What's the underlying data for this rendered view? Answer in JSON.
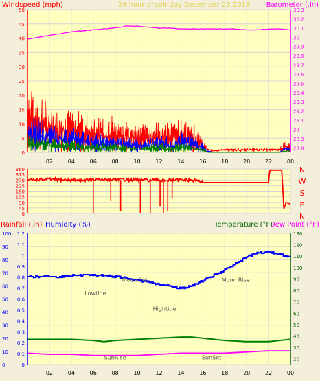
{
  "colors": {
    "background": "#f3efda",
    "plot_bg": "#ffffc0",
    "grid": "#d4d4d4",
    "red": "#ff0000",
    "blue": "#0000ff",
    "green": "#008000",
    "magenta": "#ff00ff",
    "yellow_text": "#e0d040",
    "dark_green": "#006400",
    "gray": "#505050"
  },
  "header": {
    "left": "Windspeed (mph)",
    "center": "24 hour graph day   December 23 2018",
    "right": "Barometer (.in)"
  },
  "compass": [
    "N",
    "W",
    "S",
    "E",
    "N"
  ],
  "chart_data": [
    {
      "type": "line",
      "name": "wind-barometer-panel",
      "x_ticks": [
        "02",
        "04",
        "06",
        "08",
        "10",
        "12",
        "14",
        "16",
        "18",
        "20",
        "22",
        "00"
      ],
      "xlim_hours": [
        0,
        24
      ],
      "y_left": {
        "label": "Windspeed (mph)",
        "lim": [
          0,
          50
        ],
        "ticks": [
          0,
          5,
          10,
          15,
          20,
          25,
          30,
          35,
          40,
          45,
          50
        ]
      },
      "y_right": {
        "label": "Barometer (.in)",
        "lim": [
          28.75,
          30.3
        ],
        "ticks": [
          "28.8",
          "28.9",
          "29",
          "29.1",
          "29.2",
          "29.3",
          "29.4",
          "29.5",
          "29.6",
          "29.7",
          "29.8",
          "29.9",
          "30",
          "30.1",
          "30.2",
          "30.3"
        ]
      },
      "series": [
        {
          "color": "magenta",
          "axis": "right",
          "x": [
            0,
            1,
            2,
            3,
            4,
            5,
            6,
            7,
            8,
            9,
            10,
            11,
            12,
            13,
            14,
            15,
            16,
            17,
            18,
            19,
            20,
            21,
            22,
            23,
            24
          ],
          "y": [
            29.98,
            30.0,
            30.02,
            30.04,
            30.06,
            30.07,
            30.08,
            30.09,
            30.1,
            30.12,
            30.12,
            30.11,
            30.1,
            30.1,
            30.09,
            30.09,
            30.09,
            30.09,
            30.09,
            30.09,
            30.08,
            30.08,
            30.09,
            30.09,
            30.08
          ]
        },
        {
          "color": "red",
          "axis": "left",
          "x": [
            0,
            1,
            2,
            3,
            4,
            5,
            6,
            7,
            8,
            9,
            10,
            11,
            12,
            13,
            14,
            15,
            16,
            16.5,
            17,
            18,
            19,
            20,
            21,
            22,
            23,
            23.5,
            24
          ],
          "y": [
            13,
            11,
            10,
            9,
            9,
            8,
            7,
            7,
            7,
            6,
            6,
            6,
            6,
            6,
            7,
            6,
            3,
            1,
            0.5,
            1,
            1,
            1,
            1,
            1,
            1,
            3,
            2
          ]
        },
        {
          "color": "blue",
          "axis": "left",
          "x": [
            0,
            1,
            2,
            3,
            4,
            5,
            6,
            7,
            8,
            9,
            10,
            11,
            12,
            13,
            14,
            15,
            16,
            16.5,
            17,
            18,
            19,
            20,
            21,
            22,
            23,
            23.5,
            24
          ],
          "y": [
            8,
            6.5,
            6,
            5.5,
            5,
            4.5,
            4,
            3.5,
            3.5,
            3,
            3,
            3,
            3.5,
            3,
            4,
            3.5,
            2,
            0.5,
            0,
            0,
            0,
            0,
            0,
            0,
            0,
            1.5,
            1
          ]
        },
        {
          "color": "green",
          "axis": "left",
          "x": [
            0,
            1,
            2,
            3,
            4,
            5,
            6,
            7,
            8,
            9,
            10,
            11,
            12,
            13,
            14,
            15,
            16,
            16.5,
            17,
            18,
            19,
            20,
            21,
            22,
            23,
            23.5,
            24
          ],
          "y": [
            4,
            3,
            3,
            2.5,
            2.5,
            2,
            2,
            2,
            2,
            1.5,
            1.5,
            1.5,
            2,
            1.5,
            2,
            1.5,
            1,
            0,
            0,
            0,
            0,
            0,
            0,
            0,
            0,
            0.5,
            0.5
          ]
        }
      ]
    },
    {
      "type": "line",
      "name": "wind-direction-panel",
      "x_ticks": [
        "02",
        "04",
        "06",
        "08",
        "10",
        "12",
        "14",
        "16",
        "18",
        "20",
        "22",
        "00"
      ],
      "xlim_hours": [
        0,
        24
      ],
      "y": {
        "lim": [
          0,
          360
        ],
        "ticks": [
          0,
          45,
          90,
          135,
          180,
          225,
          270,
          315,
          360
        ]
      },
      "series": [
        {
          "color": "red",
          "x": [
            0,
            2,
            4,
            6,
            8,
            10,
            12,
            14,
            15.5,
            16,
            16.2,
            22,
            22.1,
            23.2,
            23.4,
            23.6,
            24
          ],
          "y": [
            270,
            275,
            270,
            270,
            275,
            270,
            268,
            270,
            265,
            250,
            250,
            250,
            350,
            350,
            40,
            90,
            75
          ]
        }
      ],
      "dips": [
        {
          "x": 6.0,
          "y": 0
        },
        {
          "x": 7.6,
          "y": 100
        },
        {
          "x": 8.5,
          "y": 20
        },
        {
          "x": 10.3,
          "y": 0
        },
        {
          "x": 11.2,
          "y": 0
        },
        {
          "x": 12.1,
          "y": 60
        },
        {
          "x": 12.4,
          "y": 0
        },
        {
          "x": 12.8,
          "y": 20
        },
        {
          "x": 13.2,
          "y": 120
        }
      ]
    },
    {
      "type": "line",
      "name": "rain-humidity-temperature-panel",
      "x_ticks": [
        "02",
        "04",
        "06",
        "08",
        "10",
        "12",
        "14",
        "16",
        "18",
        "20",
        "22",
        "00"
      ],
      "xlim_hours": [
        0,
        24
      ],
      "legend": {
        "rain": "Rainfall (.in)",
        "humidity": "Humidity (%)",
        "temperature": "Temperature (°F)",
        "dewpoint": "Dew Point (°F)"
      },
      "y_rain": {
        "lim": [
          0,
          100
        ],
        "ticks": [
          0,
          10,
          20,
          30,
          40,
          50,
          60,
          70,
          80,
          90,
          100
        ]
      },
      "y_humidity": {
        "lim": [
          0,
          1.2
        ],
        "ticks": [
          "0",
          "0.1",
          "0.2",
          "0.3",
          "0.4",
          "0.5",
          "0.6",
          "0.7",
          "0.8",
          "0.9",
          "1",
          "1.1",
          "1.2"
        ]
      },
      "y_temp": {
        "lim": [
          15,
          130
        ],
        "ticks": [
          20,
          30,
          40,
          50,
          60,
          70,
          80,
          90,
          100,
          110,
          120,
          130
        ]
      },
      "series": [
        {
          "color": "blue",
          "name": "Humidity",
          "x": [
            0,
            1,
            2,
            3,
            4,
            5,
            6,
            7,
            8,
            9,
            10,
            11,
            12,
            13,
            14,
            15,
            16,
            17,
            18,
            19,
            20,
            21,
            22,
            23,
            24
          ],
          "y": [
            67,
            67,
            67,
            67,
            68,
            68,
            68,
            68,
            67,
            66,
            64,
            63,
            61,
            60,
            58,
            60,
            64,
            68,
            72,
            77,
            82,
            85,
            86,
            84,
            82
          ]
        },
        {
          "color": "green",
          "name": "Temperature",
          "x": [
            0,
            2,
            4,
            6,
            7,
            8,
            10,
            12,
            14,
            15,
            16,
            18,
            20,
            22,
            23,
            24
          ],
          "y": [
            37,
            37,
            37,
            36,
            35,
            36,
            37,
            38,
            39,
            39,
            38,
            36,
            35,
            35,
            36,
            37
          ]
        },
        {
          "color": "magenta",
          "name": "Dew Point",
          "x": [
            0,
            2,
            4,
            6,
            8,
            10,
            12,
            14,
            16,
            18,
            20,
            22,
            24
          ],
          "y": [
            25,
            24,
            24,
            23,
            23,
            23,
            24,
            25,
            25,
            25,
            26,
            27,
            27
          ]
        }
      ],
      "annotations": [
        {
          "text": "SunRise",
          "x": 8.0,
          "y": 96
        },
        {
          "text": "Lowtide",
          "x": 6.2,
          "y": 47
        },
        {
          "text": "Moon Set",
          "x": 9.8,
          "y": 37
        },
        {
          "text": "Hightide",
          "x": 12.5,
          "y": 59
        },
        {
          "text": "SunSet",
          "x": 16.8,
          "y": 96
        },
        {
          "text": "Moon Rise",
          "x": 19.0,
          "y": 37
        }
      ]
    }
  ]
}
